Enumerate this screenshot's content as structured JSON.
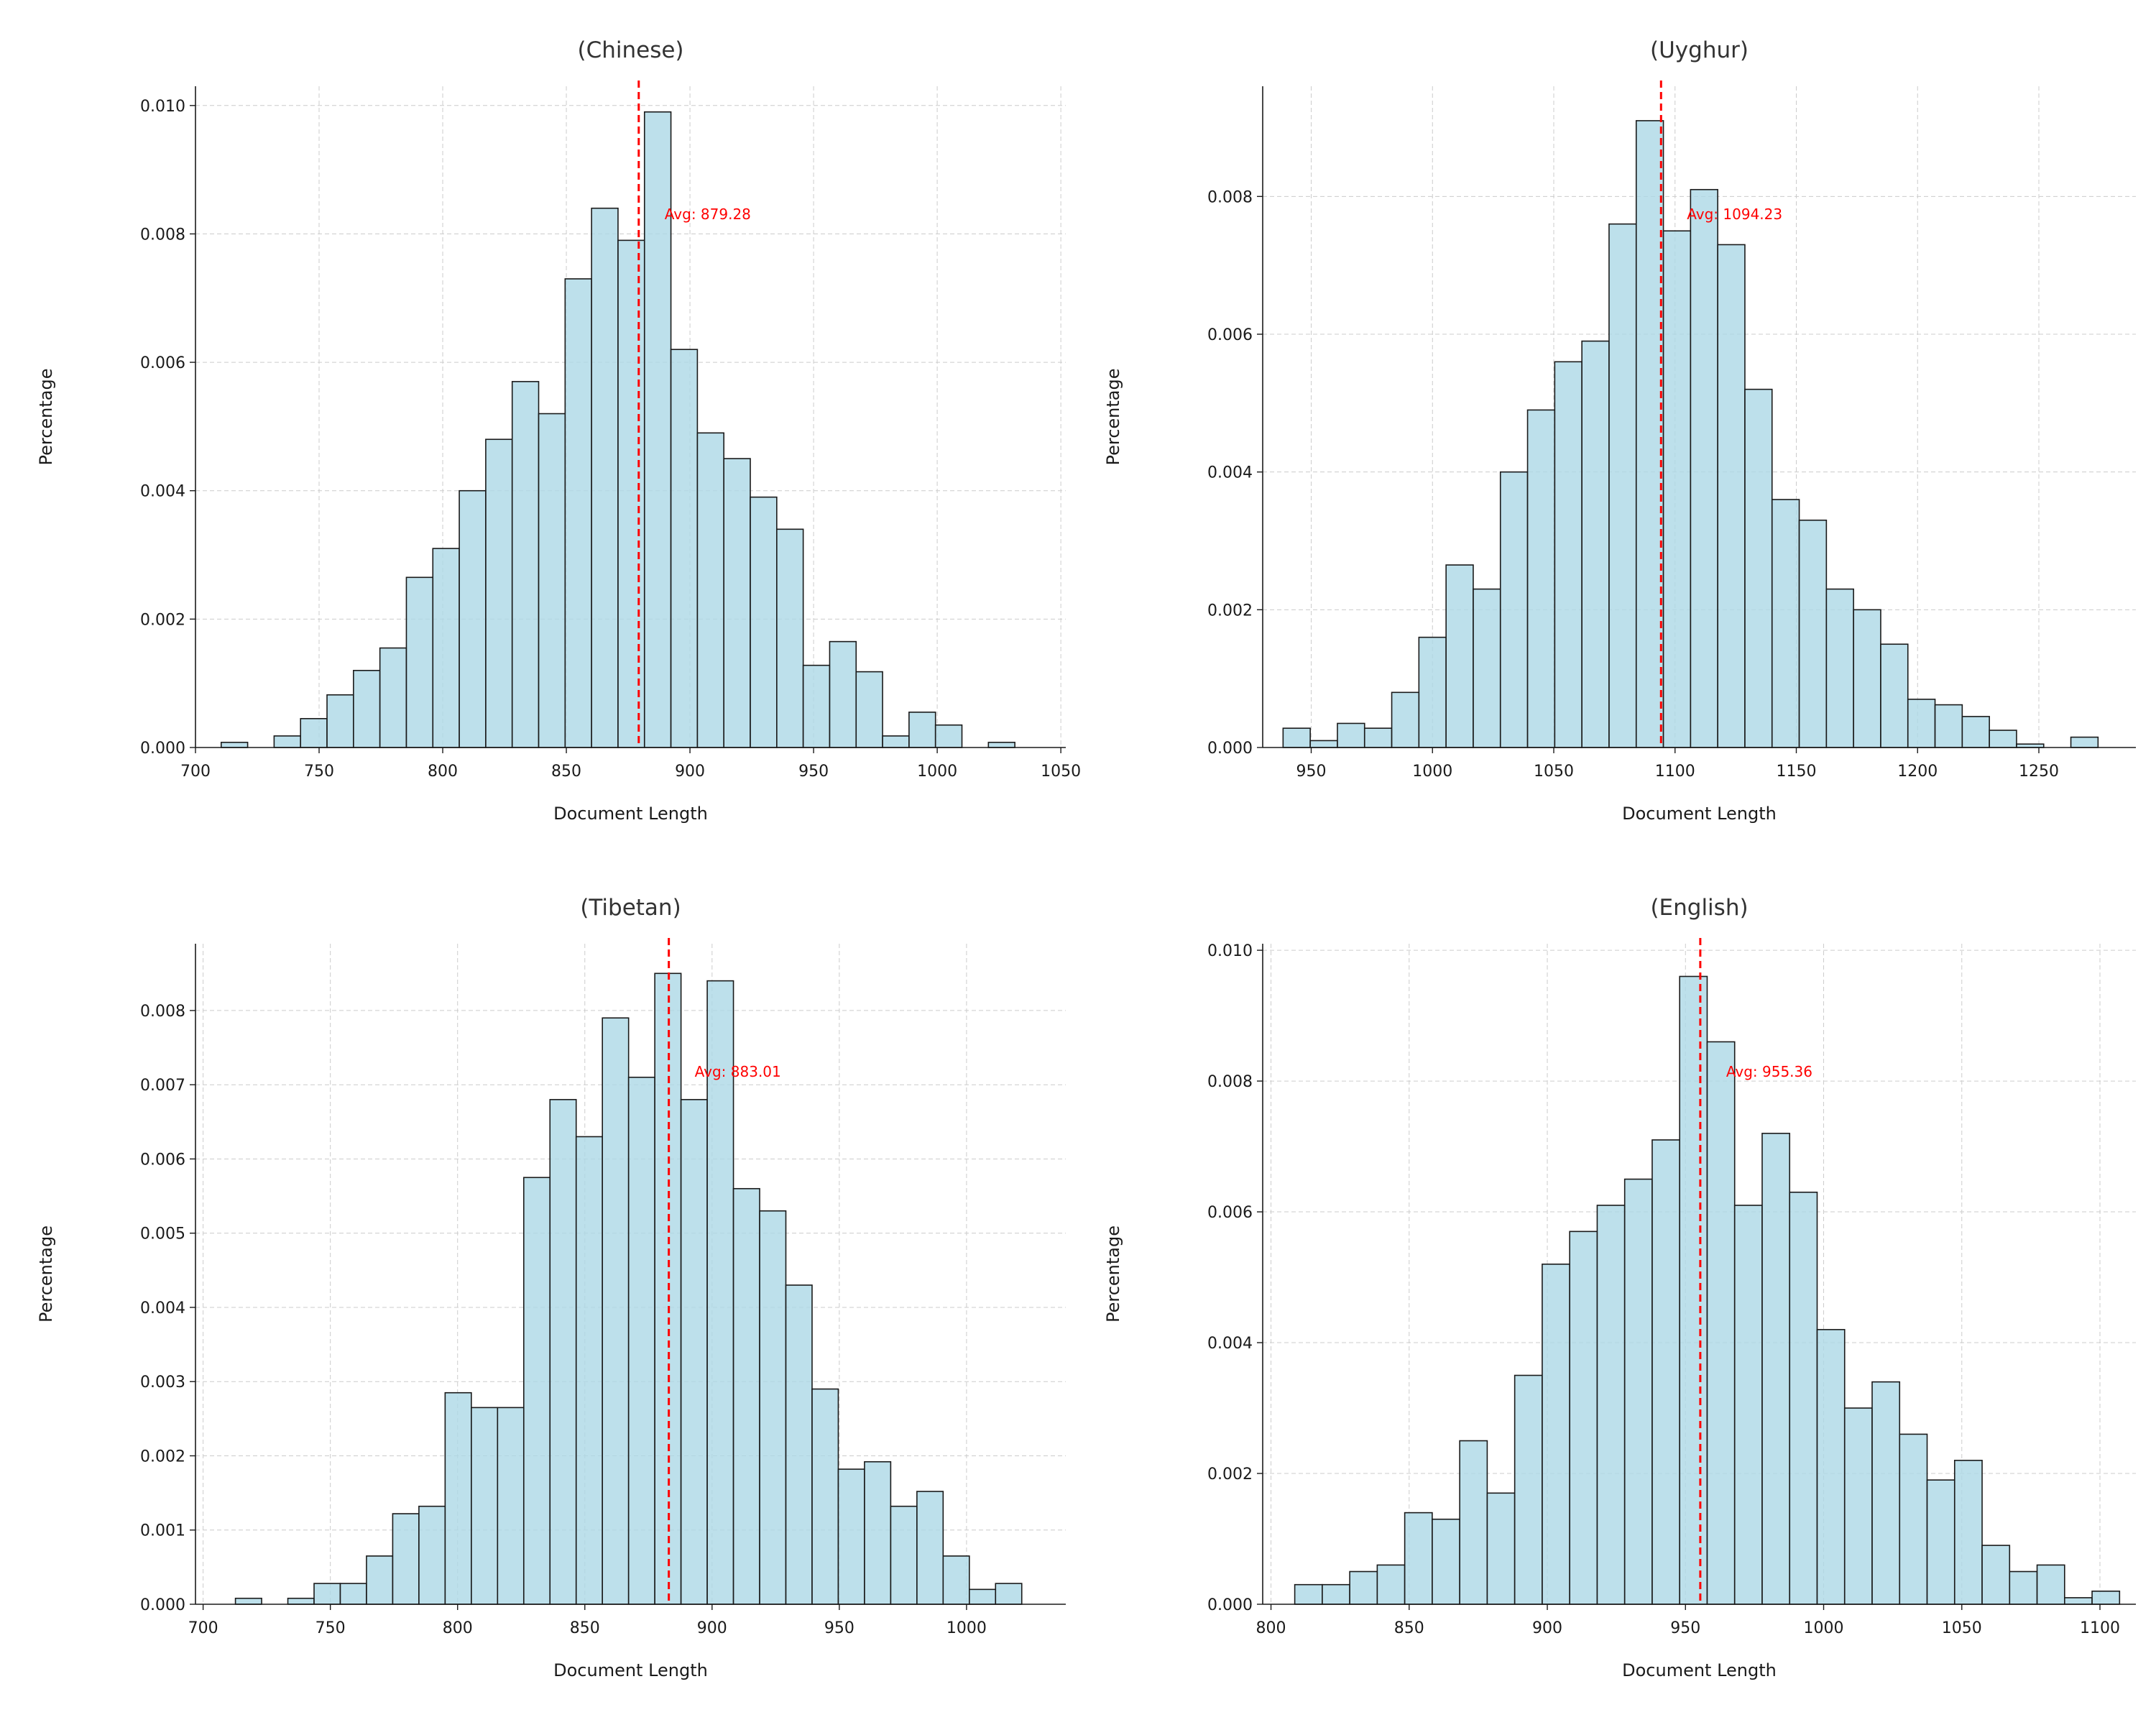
{
  "chart_data": [
    {
      "type": "bar",
      "title": "(Chinese)",
      "xlabel": "Document Length",
      "ylabel": "Percentage",
      "xlim": [
        700,
        1052
      ],
      "ylim": [
        0,
        0.0103
      ],
      "xticks": [
        700,
        750,
        800,
        850,
        900,
        950,
        1000,
        1050
      ],
      "yticks": [
        0.0,
        0.002,
        0.004,
        0.006,
        0.008,
        0.01
      ],
      "ytick_labels": [
        "0.000",
        "0.002",
        "0.004",
        "0.006",
        "0.008",
        "0.010"
      ],
      "bin_start": 710.4,
      "bin_width": 10.7,
      "values": [
        8e-05,
        0,
        0.00018,
        0.00045,
        0.00082,
        0.0012,
        0.00155,
        0.00265,
        0.0031,
        0.004,
        0.0048,
        0.0057,
        0.0052,
        0.0073,
        0.0084,
        0.0079,
        0.0099,
        0.0062,
        0.0049,
        0.0045,
        0.0039,
        0.0034,
        0.00128,
        0.00165,
        0.00118,
        0.00018,
        0.00055,
        0.00035,
        0,
        8e-05
      ],
      "grid": true,
      "average": 879.28,
      "average_label": "Avg: 879.28",
      "average_color": "#ff0000",
      "bar_color": "#add8e6"
    },
    {
      "type": "bar",
      "title": "(Uyghur)",
      "xlabel": "Document Length",
      "ylabel": "Percentage",
      "xlim": [
        930,
        1290
      ],
      "ylim": [
        0,
        0.0096
      ],
      "xticks": [
        950,
        1000,
        1050,
        1100,
        1150,
        1200,
        1250
      ],
      "yticks": [
        0.0,
        0.002,
        0.004,
        0.006,
        0.008
      ],
      "ytick_labels": [
        "0.000",
        "0.002",
        "0.004",
        "0.006",
        "0.008"
      ],
      "bin_start": 938.4,
      "bin_width": 11.2,
      "values": [
        0.00028,
        0.0001,
        0.00035,
        0.00028,
        0.0008,
        0.0016,
        0.00265,
        0.0023,
        0.004,
        0.0049,
        0.0056,
        0.0059,
        0.0076,
        0.0091,
        0.0075,
        0.0081,
        0.0073,
        0.0052,
        0.0036,
        0.0033,
        0.0023,
        0.002,
        0.0015,
        0.0007,
        0.00062,
        0.00045,
        0.00025,
        5e-05,
        0,
        0.00015
      ],
      "grid": true,
      "average": 1094.23,
      "average_label": "Avg: 1094.23",
      "average_color": "#ff0000",
      "bar_color": "#add8e6"
    },
    {
      "type": "bar",
      "title": "(Tibetan)",
      "xlabel": "Document Length",
      "ylabel": "Percentage",
      "xlim": [
        697,
        1039
      ],
      "ylim": [
        0,
        0.0089
      ],
      "xticks": [
        700,
        750,
        800,
        850,
        900,
        950,
        1000
      ],
      "yticks": [
        0.0,
        0.001,
        0.002,
        0.003,
        0.004,
        0.005,
        0.006,
        0.007,
        0.008
      ],
      "ytick_labels": [
        "0.000",
        "0.001",
        "0.002",
        "0.003",
        "0.004",
        "0.005",
        "0.006",
        "0.007",
        "0.008"
      ],
      "bin_start": 712.7,
      "bin_width": 10.3,
      "values": [
        8e-05,
        0,
        8e-05,
        0.00028,
        0.00028,
        0.00065,
        0.00122,
        0.00132,
        0.00285,
        0.00265,
        0.00265,
        0.00575,
        0.0068,
        0.0063,
        0.0079,
        0.0071,
        0.0085,
        0.0068,
        0.0084,
        0.0056,
        0.0053,
        0.0043,
        0.0029,
        0.00182,
        0.00192,
        0.00132,
        0.00152,
        0.00065,
        0.0002,
        0.00028
      ],
      "grid": true,
      "average": 883.01,
      "average_label": "Avg: 883.01",
      "average_color": "#ff0000",
      "bar_color": "#add8e6"
    },
    {
      "type": "bar",
      "title": "(English)",
      "xlabel": "Document Length",
      "ylabel": "Percentage",
      "xlim": [
        797,
        1113
      ],
      "ylim": [
        0,
        0.0101
      ],
      "xticks": [
        800,
        850,
        900,
        950,
        1000,
        1050,
        1100
      ],
      "yticks": [
        0.0,
        0.002,
        0.004,
        0.006,
        0.008,
        0.01
      ],
      "ytick_labels": [
        "0.000",
        "0.002",
        "0.004",
        "0.006",
        "0.008",
        "0.010"
      ],
      "bin_start": 808.6,
      "bin_width": 9.95,
      "values": [
        0.0003,
        0.0003,
        0.0005,
        0.0006,
        0.0014,
        0.0013,
        0.0025,
        0.0017,
        0.0035,
        0.0052,
        0.0057,
        0.0061,
        0.0065,
        0.0071,
        0.0096,
        0.0086,
        0.0061,
        0.0072,
        0.0063,
        0.0042,
        0.003,
        0.0034,
        0.0026,
        0.0019,
        0.0022,
        0.0009,
        0.0005,
        0.0006,
        0.0001,
        0.0002
      ],
      "grid": true,
      "average": 955.36,
      "average_label": "Avg: 955.36",
      "average_color": "#ff0000",
      "bar_color": "#add8e6"
    }
  ]
}
